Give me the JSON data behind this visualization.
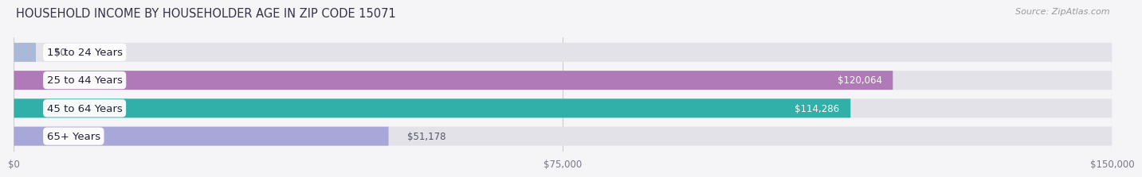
{
  "title": "HOUSEHOLD INCOME BY HOUSEHOLDER AGE IN ZIP CODE 15071",
  "source": "Source: ZipAtlas.com",
  "categories": [
    "15 to 24 Years",
    "25 to 44 Years",
    "45 to 64 Years",
    "65+ Years"
  ],
  "values": [
    0,
    120064,
    114286,
    51178
  ],
  "bar_colors": [
    "#aab9d8",
    "#b07ab8",
    "#30b0a8",
    "#a8a8d8"
  ],
  "value_labels": [
    "$0",
    "$120,064",
    "$114,286",
    "$51,178"
  ],
  "value_label_inside": [
    false,
    true,
    true,
    false
  ],
  "value_label_colors_inside": [
    "#ffffff",
    "#ffffff",
    "#ffffff",
    "#ffffff"
  ],
  "xlim": [
    0,
    150000
  ],
  "xticks": [
    0,
    75000,
    150000
  ],
  "xticklabels": [
    "$0",
    "$75,000",
    "$150,000"
  ],
  "background_color": "#f5f5f8",
  "bar_bg_color": "#e2e2e8",
  "title_fontsize": 10.5,
  "source_fontsize": 8,
  "bar_height": 0.68,
  "label_fontsize": 9.5,
  "value_fontsize": 8.5
}
